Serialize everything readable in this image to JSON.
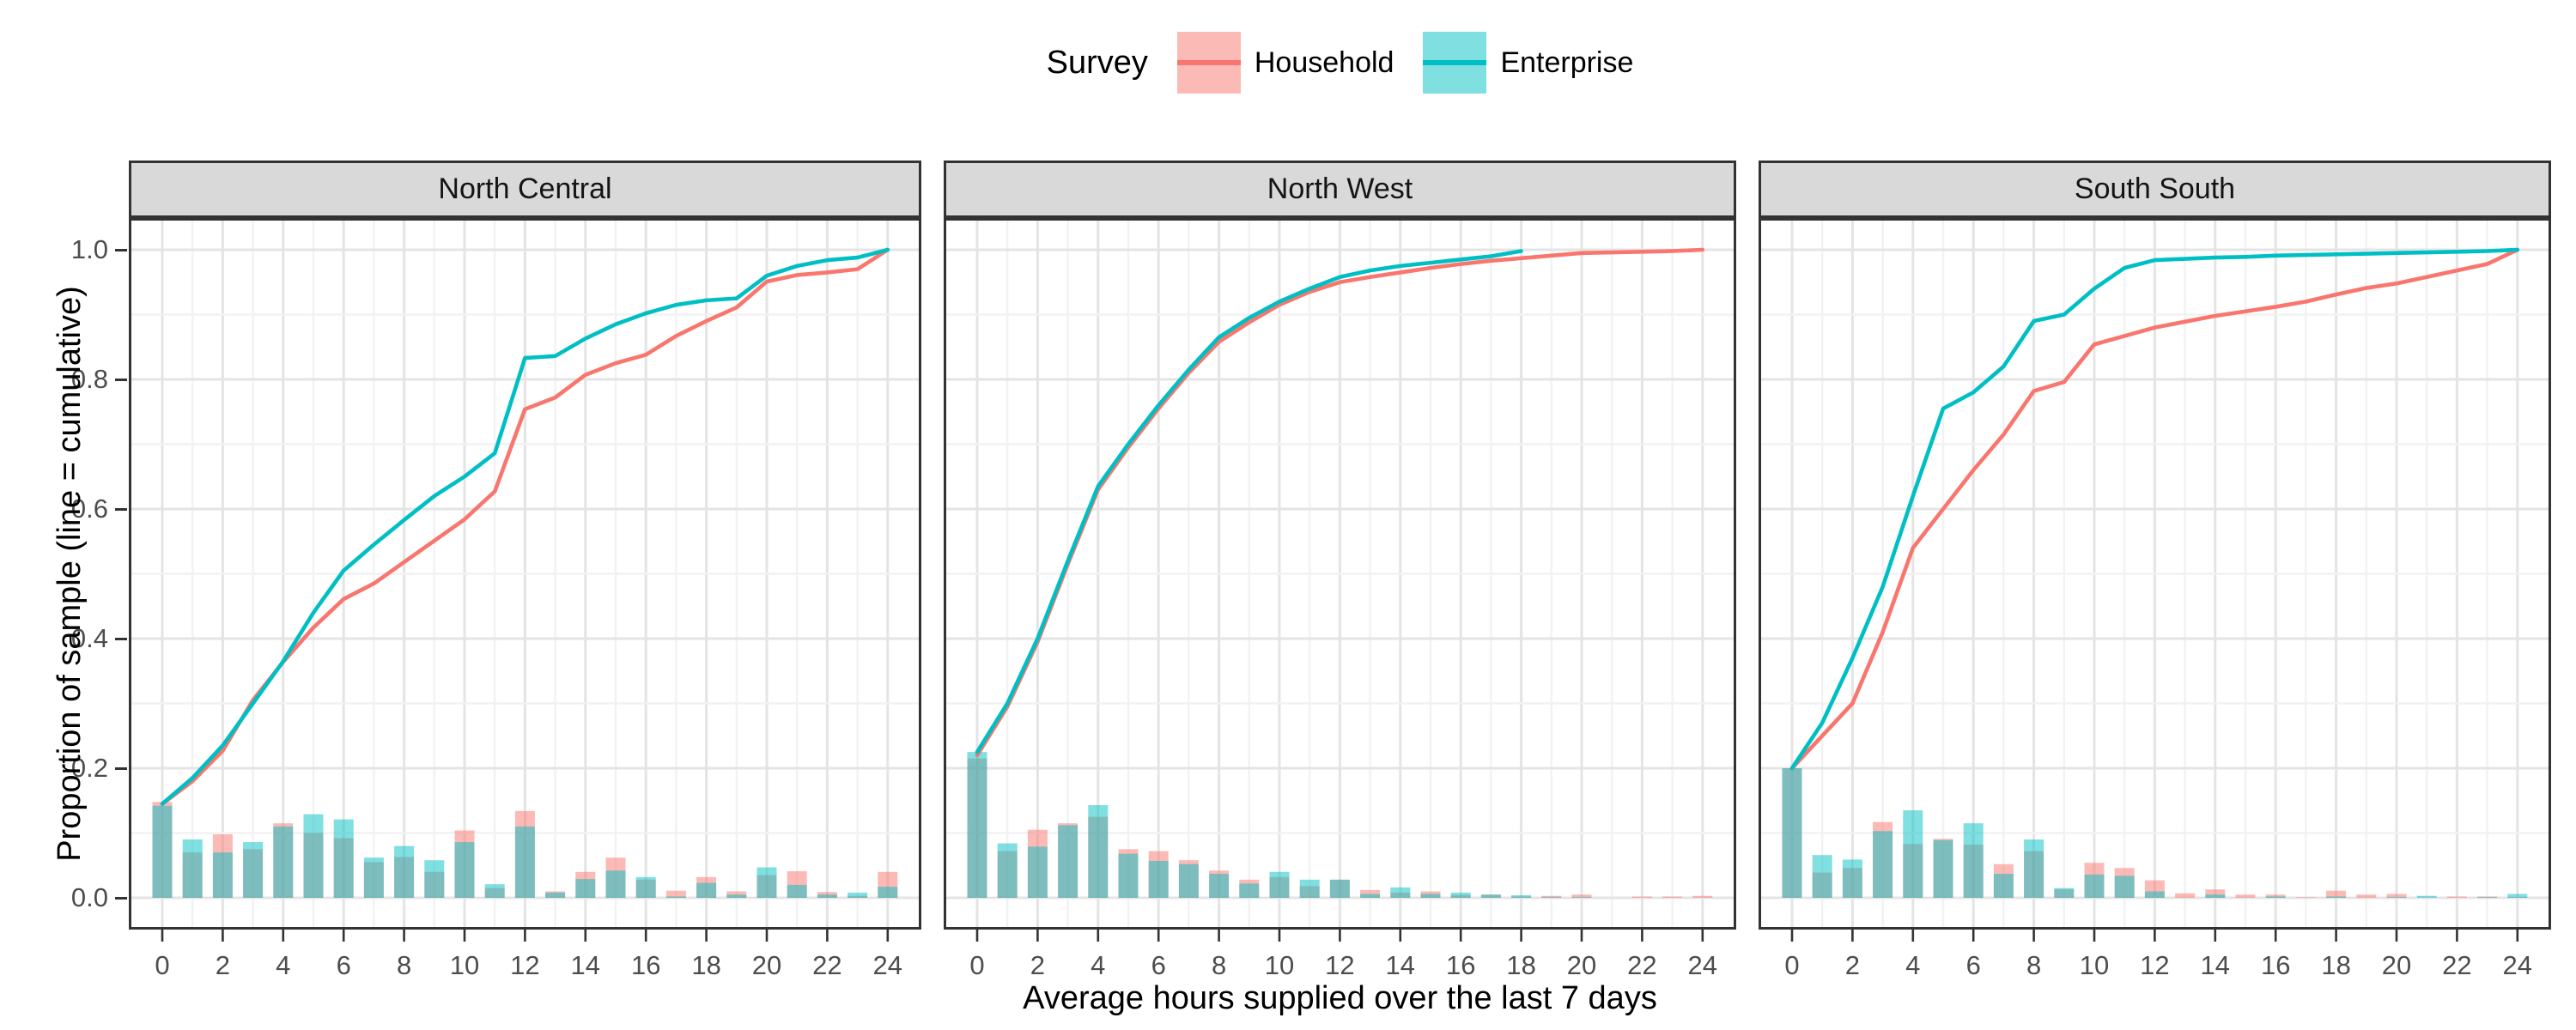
{
  "legend": {
    "title": "Survey",
    "items": [
      {
        "label": "Household",
        "line_color": "#F8766D",
        "fill_color": "rgba(248,118,109,0.5)"
      },
      {
        "label": "Enterprise",
        "line_color": "#00BFC4",
        "fill_color": "rgba(0,191,196,0.5)"
      }
    ]
  },
  "axes": {
    "x_title": "Average hours supplied over the last 7 days",
    "y_title": "Proportion of sample (line = cumulative)",
    "x_tick_labels": [
      "0",
      "2",
      "4",
      "6",
      "8",
      "10",
      "12",
      "14",
      "16",
      "18",
      "20",
      "22",
      "24"
    ],
    "x_tick_values": [
      0,
      2,
      4,
      6,
      8,
      10,
      12,
      14,
      16,
      18,
      20,
      22,
      24
    ],
    "y_tick_labels": [
      "0.0",
      "0.2",
      "0.4",
      "0.6",
      "0.8",
      "1.0"
    ],
    "y_tick_values": [
      0,
      0.2,
      0.4,
      0.6,
      0.8,
      1.0
    ]
  },
  "style": {
    "strip_bg": "#D9D9D9",
    "panel_border": "#333333",
    "grid_major": "#E4E4E4",
    "grid_minor": "#F2F2F2",
    "tick_color": "#333333",
    "tick_label_color": "#4D4D4D",
    "household_color": "#F8766D",
    "enterprise_color": "#00BFC4",
    "bar_alpha": 0.5
  },
  "chart_data": {
    "type": "line+bar",
    "description": "Cumulative distribution lines with histogram bars of average hours supplied, faceted by region",
    "x": [
      0,
      1,
      2,
      3,
      4,
      5,
      6,
      7,
      8,
      9,
      10,
      11,
      12,
      13,
      14,
      15,
      16,
      17,
      18,
      19,
      20,
      21,
      22,
      23,
      24
    ],
    "xlim": [
      0,
      24
    ],
    "ylim": [
      0,
      1.0
    ],
    "grid": "on",
    "legend_position": "top",
    "panels": [
      {
        "title": "North Central",
        "household_line": [
          0.145,
          0.18,
          0.227,
          0.305,
          0.364,
          0.417,
          0.461,
          0.485,
          0.518,
          0.551,
          0.584,
          0.627,
          0.754,
          0.772,
          0.807,
          0.825,
          0.838,
          0.867,
          0.89,
          0.911,
          0.951,
          0.961,
          0.965,
          0.97,
          1.0
        ],
        "enterprise_line": [
          0.145,
          0.185,
          0.235,
          0.3,
          0.365,
          0.44,
          0.505,
          0.545,
          0.583,
          0.62,
          0.65,
          0.686,
          0.833,
          0.836,
          0.863,
          0.885,
          0.902,
          0.915,
          0.922,
          0.925,
          0.96,
          0.975,
          0.984,
          0.988,
          1.0
        ],
        "household_bars": [
          0.148,
          0.07,
          0.098,
          0.075,
          0.115,
          0.1,
          0.092,
          0.055,
          0.063,
          0.04,
          0.104,
          0.015,
          0.134,
          0.01,
          0.04,
          0.062,
          0.028,
          0.011,
          0.032,
          0.01,
          0.035,
          0.041,
          0.009,
          0.003,
          0.04
        ],
        "enterprise_bars": [
          0.142,
          0.09,
          0.07,
          0.086,
          0.11,
          0.129,
          0.121,
          0.062,
          0.08,
          0.058,
          0.086,
          0.021,
          0.11,
          0.008,
          0.029,
          0.042,
          0.032,
          0.002,
          0.023,
          0.005,
          0.047,
          0.02,
          0.005,
          0.008,
          0.017
        ]
      },
      {
        "title": "North West",
        "household_line": [
          0.22,
          0.295,
          0.395,
          0.515,
          0.63,
          0.695,
          0.755,
          0.81,
          0.858,
          0.888,
          0.915,
          0.935,
          0.95,
          0.958,
          0.965,
          0.972,
          0.978,
          0.983,
          0.987,
          0.991,
          0.995,
          0.996,
          0.997,
          0.998,
          1.0
        ],
        "enterprise_line": [
          0.225,
          0.3,
          0.4,
          0.52,
          0.635,
          0.7,
          0.76,
          0.815,
          0.865,
          0.895,
          0.92,
          0.94,
          0.958,
          0.968,
          0.975,
          0.98,
          0.985,
          0.99,
          0.998,
          null,
          null,
          null,
          null,
          null,
          null
        ],
        "household_bars": [
          0.215,
          0.072,
          0.105,
          0.115,
          0.125,
          0.075,
          0.072,
          0.058,
          0.042,
          0.028,
          0.032,
          0.018,
          0.028,
          0.012,
          0.008,
          0.01,
          0.004,
          0.005,
          0.002,
          0.003,
          0.005,
          0,
          0.002,
          0.002,
          0.003
        ],
        "enterprise_bars": [
          0.225,
          0.084,
          0.079,
          0.112,
          0.143,
          0.068,
          0.057,
          0.052,
          0.037,
          0.022,
          0.04,
          0.028,
          0.028,
          0.006,
          0.016,
          0.006,
          0.008,
          0.005,
          0.004,
          0.001,
          0.001,
          0,
          0,
          0,
          0
        ]
      },
      {
        "title": "South South",
        "household_line": [
          0.2,
          0.25,
          0.3,
          0.41,
          0.54,
          0.6,
          0.66,
          0.715,
          0.782,
          0.796,
          0.854,
          0.867,
          0.88,
          0.889,
          0.898,
          0.905,
          0.912,
          0.92,
          0.931,
          0.941,
          0.948,
          0.958,
          0.968,
          0.978,
          1.0
        ],
        "enterprise_line": [
          0.2,
          0.27,
          0.37,
          0.48,
          0.62,
          0.755,
          0.78,
          0.82,
          0.89,
          0.9,
          0.94,
          0.972,
          0.984,
          0.986,
          0.988,
          0.989,
          0.991,
          0.992,
          0.993,
          0.994,
          0.995,
          0.996,
          0.997,
          0.998,
          1.0
        ],
        "household_bars": [
          0.2,
          0.039,
          0.046,
          0.117,
          0.083,
          0.091,
          0.082,
          0.052,
          0.072,
          0.013,
          0.054,
          0.046,
          0.027,
          0.007,
          0.013,
          0.005,
          0.005,
          0.001,
          0.011,
          0.005,
          0.006,
          0,
          0.002,
          0.002,
          0.001
        ],
        "enterprise_bars": [
          0.2,
          0.066,
          0.059,
          0.103,
          0.135,
          0.089,
          0.115,
          0.037,
          0.09,
          0.015,
          0.036,
          0.034,
          0.01,
          0,
          0.005,
          0,
          0.002,
          0,
          0.002,
          0,
          0.001,
          0.003,
          0,
          0.001,
          0.006
        ]
      }
    ]
  }
}
